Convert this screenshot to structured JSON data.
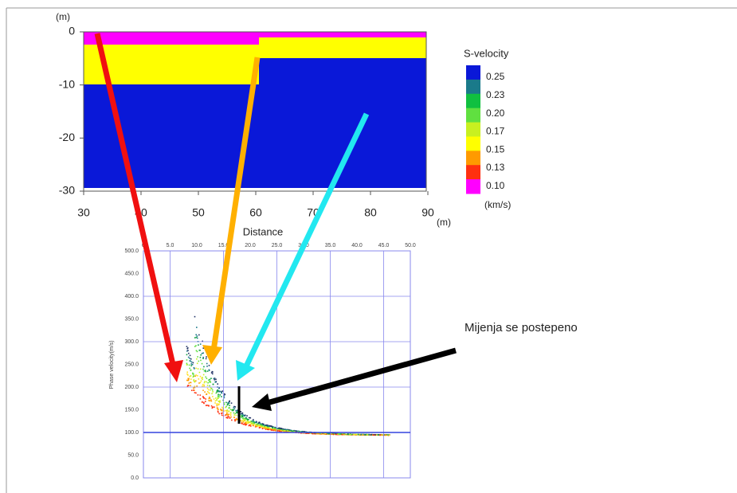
{
  "profile": {
    "y_unit": "(m)",
    "x_unit": "(m)",
    "x_label": "Distance",
    "yticks": [
      "0",
      "-10",
      "-20",
      "-30"
    ],
    "xticks": [
      "30",
      "40",
      "50",
      "60",
      "70",
      "80",
      "90"
    ]
  },
  "legend": {
    "title": "S-velocity",
    "labels": [
      "0.25",
      "0.23",
      "0.20",
      "0.17",
      "0.15",
      "0.13",
      "0.10"
    ],
    "unit": "(km/s)"
  },
  "dispersion": {
    "y_label": "Phase velocity(m/s)",
    "xticks": [
      "0",
      "5.0",
      "10.0",
      "15.0",
      "20.0",
      "25.0",
      "30.0",
      "35.0",
      "40.0",
      "45.0",
      "50.0"
    ],
    "yticks": [
      "500.0",
      "450.0",
      "400.0",
      "350.0",
      "300.0",
      "250.0",
      "200.0",
      "150.0",
      "100.0",
      "50.0",
      "0.0"
    ]
  },
  "annotation": "Mijenja se postepeno"
}
